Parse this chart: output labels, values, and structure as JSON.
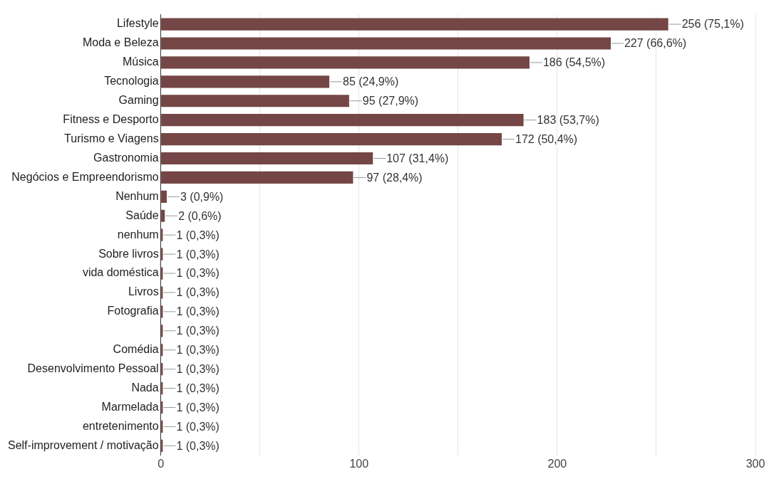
{
  "chart_data": {
    "type": "bar",
    "orientation": "horizontal",
    "color": "#744646",
    "categories": [
      "Lifestyle",
      "Moda e Beleza",
      "Música",
      "Tecnologia",
      "Gaming",
      "Fitness e Desporto",
      "Turismo e Viagens",
      "Gastronomia",
      "Negócios e Empreendorismo",
      "Nenhum",
      "Saúde",
      "nenhum",
      "Sobre livros",
      "vida doméstica",
      "Livros",
      "Fotografia",
      null,
      "Comédia",
      "Desenvolvimento Pessoal",
      "Nada",
      "Marmelada",
      "entretenimento",
      "Self-improvement / motivação"
    ],
    "values": [
      256,
      227,
      186,
      85,
      95,
      183,
      172,
      107,
      97,
      3,
      2,
      1,
      1,
      1,
      1,
      1,
      1,
      1,
      1,
      1,
      1,
      1,
      1
    ],
    "value_labels": [
      "256 (75,1%)",
      "227 (66,6%)",
      "186 (54,5%)",
      "85 (24,9%)",
      "95 (27,9%)",
      "183 (53,7%)",
      "172 (50,4%)",
      "107 (31,4%)",
      "97 (28,4%)",
      "3 (0,9%)",
      "2 (0,6%)",
      "1 (0,3%)",
      "1 (0,3%)",
      "1 (0,3%)",
      "1 (0,3%)",
      "1 (0,3%)",
      "1 (0,3%)",
      "1 (0,3%)",
      "1 (0,3%)",
      "1 (0,3%)",
      "1 (0,3%)",
      "1 (0,3%)",
      "1 (0,3%)"
    ],
    "xlim": [
      0,
      300
    ],
    "xticks": [
      0,
      {
        "value": 50,
        "label": null
      },
      100,
      {
        "value": 150,
        "label": null
      },
      200,
      {
        "value": 250,
        "label": null
      },
      300
    ],
    "grid": "x",
    "legend": false
  }
}
